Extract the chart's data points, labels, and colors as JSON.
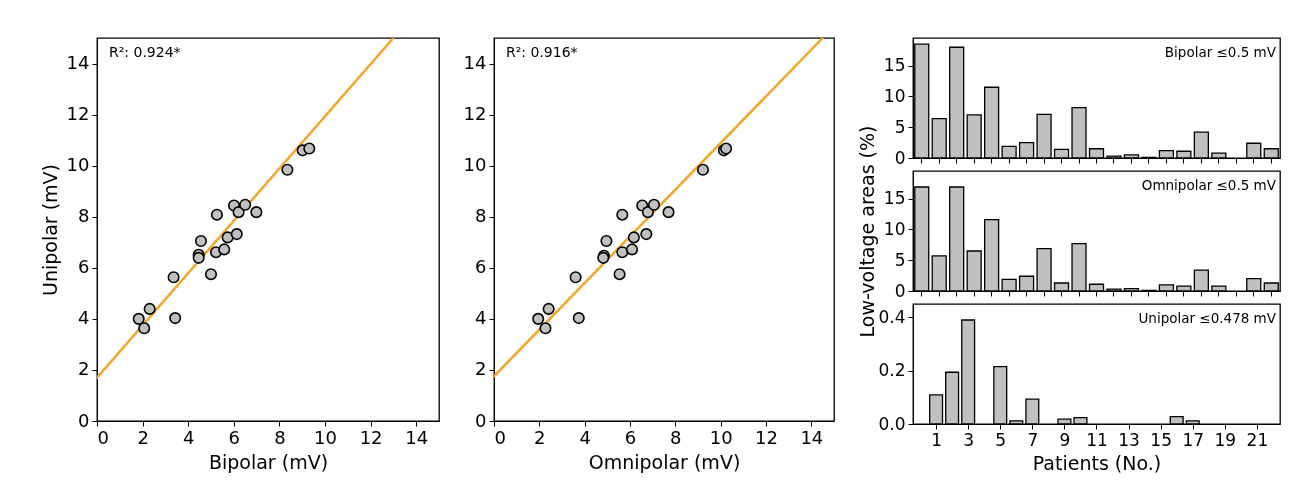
{
  "chart_data": [
    {
      "type": "scatter",
      "xlabel": "Bipolar (mV)",
      "ylabel": "Unipolar (mV)",
      "xlim": [
        0,
        15
      ],
      "ylim": [
        0,
        15
      ],
      "xticks": [
        0,
        2,
        4,
        6,
        8,
        10,
        12,
        14
      ],
      "yticks": [
        0,
        2,
        4,
        6,
        8,
        10,
        12,
        14
      ],
      "annotations": [
        "R²: 0.924*"
      ],
      "series": [
        {
          "type": "line",
          "color": "#f5a52a",
          "x": [
            0,
            13.0
          ],
          "values": [
            1.7,
            15
          ]
        },
        {
          "color": "#c0c0c0",
          "x": [
            1.83,
            2.07,
            2.31,
            3.43,
            3.36,
            4.46,
            4.46,
            4.56,
            5.0,
            5.26,
            5.22,
            5.58,
            5.73,
            6.13,
            6.01,
            6.21,
            6.5,
            6.99,
            8.35,
            9.02,
            9.31
          ],
          "values": [
            4.0,
            3.63,
            4.39,
            4.03,
            5.63,
            6.51,
            6.39,
            7.05,
            5.75,
            8.08,
            6.61,
            6.72,
            7.19,
            7.32,
            8.44,
            8.18,
            8.47,
            8.18,
            9.84,
            10.6,
            10.67
          ]
        }
      ]
    },
    {
      "type": "scatter",
      "xlabel": "Omnipolar (mV)",
      "xlim": [
        0,
        15
      ],
      "ylim": [
        0,
        15
      ],
      "xticks": [
        0,
        2,
        4,
        6,
        8,
        10,
        12,
        14
      ],
      "yticks": [
        0,
        2,
        4,
        6,
        8,
        10,
        12,
        14
      ],
      "annotations": [
        "R²: 0.916*"
      ],
      "series": [
        {
          "type": "line",
          "color": "#f5a52a",
          "x": [
            0,
            14.5
          ],
          "values": [
            1.75,
            15
          ]
        },
        {
          "color": "#c0c0c0",
          "x": [
            1.95,
            2.27,
            2.41,
            3.74,
            3.6,
            4.85,
            4.82,
            4.96,
            5.54,
            5.66,
            5.66,
            6.09,
            6.17,
            6.72,
            6.54,
            6.79,
            7.06,
            7.7,
            9.22,
            10.14,
            10.24
          ],
          "values": [
            4.0,
            3.63,
            4.39,
            4.03,
            5.63,
            6.47,
            6.39,
            7.05,
            5.75,
            8.08,
            6.61,
            6.72,
            7.19,
            7.32,
            8.44,
            8.18,
            8.47,
            8.18,
            9.84,
            10.6,
            10.67
          ]
        }
      ]
    },
    {
      "type": "bar",
      "color": "#c0c0c0",
      "annotations": [
        "Bipolar ≤0.5 mV"
      ],
      "categories": [
        null,
        null,
        null,
        null,
        null,
        null,
        null,
        null,
        null,
        null,
        null,
        null,
        null,
        null,
        null,
        null,
        null,
        null,
        null,
        null,
        null
      ],
      "ylim": [
        0,
        19.5
      ],
      "yticks": [
        0,
        5,
        10,
        15
      ],
      "values": [
        18.5,
        6.4,
        18.0,
        7.0,
        11.5,
        1.9,
        2.5,
        7.1,
        1.4,
        8.2,
        1.5,
        0.3,
        0.5,
        0.1,
        1.2,
        1.1,
        4.2,
        0.8,
        0,
        2.4,
        1.5
      ]
    },
    {
      "type": "bar",
      "color": "#c0c0c0",
      "ylabel": "Low-voltage areas (%)",
      "annotations": [
        "Omnipolar ≤0.5 mV"
      ],
      "categories": [
        null,
        null,
        null,
        null,
        null,
        null,
        null,
        null,
        null,
        null,
        null,
        null,
        null,
        null,
        null,
        null,
        null,
        null,
        null,
        null,
        null
      ],
      "ylim": [
        0,
        19.5
      ],
      "yticks": [
        0,
        5,
        10,
        15
      ],
      "values": [
        16.9,
        5.7,
        16.9,
        6.5,
        11.6,
        1.9,
        2.4,
        6.9,
        1.3,
        7.7,
        1.1,
        0.3,
        0.4,
        0.1,
        1.0,
        0.8,
        3.4,
        0.8,
        0,
        2.0,
        1.3
      ]
    },
    {
      "type": "bar",
      "color": "#c0c0c0",
      "xlabel": "Patients (No.)",
      "annotations": [
        "Unipolar ≤0.478 mV"
      ],
      "x": [
        1,
        2,
        3,
        4,
        5,
        6,
        7,
        8,
        9,
        10,
        11,
        12,
        13,
        14,
        15,
        16,
        17,
        18,
        19,
        20,
        21
      ],
      "xlim": [
        -0.44,
        22.44
      ],
      "xticks": [
        1,
        3,
        5,
        7,
        9,
        11,
        13,
        15,
        17,
        19,
        21
      ],
      "ylim": [
        0,
        0.45
      ],
      "yticks": [
        {
          "value": 0,
          "label": "0.0"
        },
        0.2,
        0.4
      ],
      "values": [
        0.109,
        0.194,
        0.39,
        0,
        0.215,
        0.012,
        0.093,
        0,
        0.018,
        0.024,
        0,
        0,
        0,
        0,
        0,
        0.028,
        0.012,
        0,
        0,
        0,
        0
      ]
    }
  ]
}
